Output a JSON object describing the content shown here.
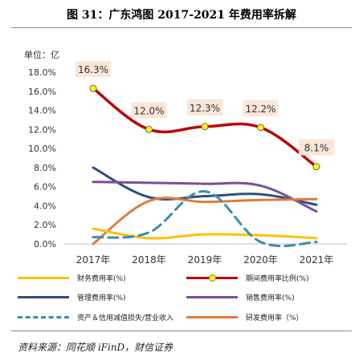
{
  "title": "图 31：广东鸿图 2017-2021 年费用率拆解",
  "unit_label": "单位：亿",
  "source": "资料来源：同花顺 iFinD，财信证券",
  "chart_data": {
    "type": "line",
    "categories": [
      "2017年",
      "2018年",
      "2019年",
      "2020年",
      "2021年"
    ],
    "ylim": [
      0,
      18
    ],
    "yticks": [
      "0.0%",
      "2.0%",
      "4.0%",
      "6.0%",
      "8.0%",
      "10.0%",
      "12.0%",
      "14.0%",
      "16.0%",
      "18.0%"
    ],
    "grid": false,
    "legend_position": "bottom",
    "series": [
      {
        "name": "期间费用率比例(%)",
        "color": "#c00000",
        "width": 3.5,
        "style": "solid",
        "markers": true,
        "labels": [
          "16.3%",
          "12.0%",
          "12.3%",
          "12.2%",
          "8.1%"
        ],
        "values": [
          16.3,
          12.0,
          12.3,
          12.2,
          8.1
        ]
      },
      {
        "name": "管理费用率(%)",
        "color": "#2e4e7e",
        "width": 3,
        "style": "solid",
        "values": [
          8.0,
          4.9,
          5.0,
          5.2,
          4.1
        ]
      },
      {
        "name": "销售费用率(%)",
        "color": "#7a4e9a",
        "width": 3,
        "style": "solid",
        "values": [
          6.5,
          6.4,
          6.3,
          6.1,
          3.4
        ]
      },
      {
        "name": "研发费用率（%）",
        "color": "#e07b39",
        "width": 3,
        "style": "solid",
        "values": [
          0.0,
          4.5,
          4.4,
          4.6,
          4.7
        ]
      },
      {
        "name": "财务费用率(%)",
        "color": "#ffc000",
        "width": 3,
        "style": "solid",
        "values": [
          1.6,
          0.6,
          1.0,
          0.9,
          0.6
        ]
      },
      {
        "name": "资产＆信用减值损失/营业收入",
        "color": "#3b8fb0",
        "width": 3,
        "style": "dashed",
        "values": [
          0.7,
          1.2,
          5.5,
          0.2,
          0.2
        ]
      }
    ]
  },
  "legend": [
    {
      "label": "财务费用率(%)",
      "color": "#ffc000",
      "style": "solid",
      "marker": false
    },
    {
      "label": "期间费用率比例(%)",
      "color": "#c00000",
      "style": "solid",
      "marker": true
    },
    {
      "label": "管理费用率(%)",
      "color": "#2e4e7e",
      "style": "solid",
      "marker": false
    },
    {
      "label": "销售费用率(%)",
      "color": "#7a4e9a",
      "style": "solid",
      "marker": false
    },
    {
      "label": "资产＆信用减值损失/营业收入",
      "color": "#3b8fb0",
      "style": "dashed",
      "marker": false
    },
    {
      "label": "研发费用率（%）",
      "color": "#e07b39",
      "style": "solid",
      "marker": false
    }
  ]
}
